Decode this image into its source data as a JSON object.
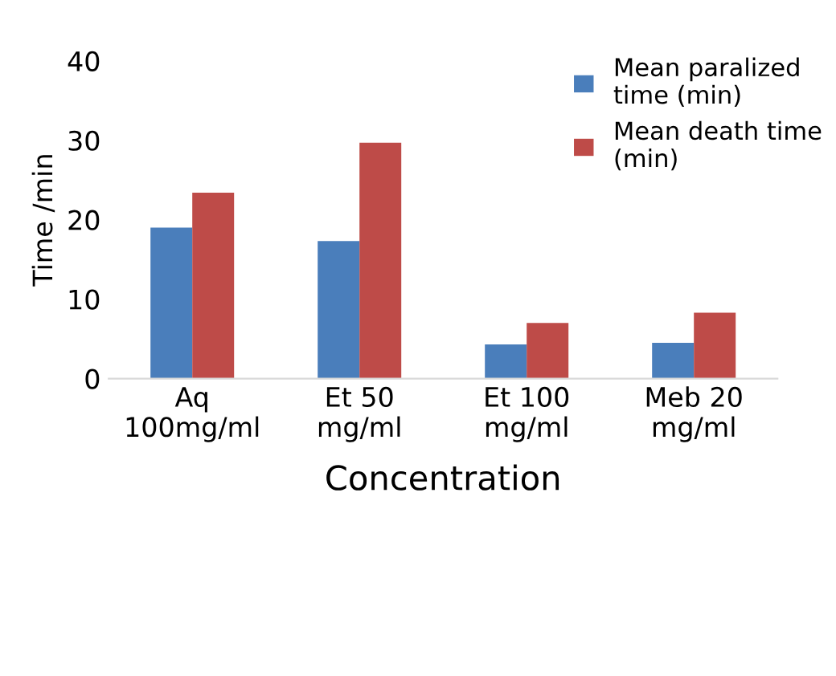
{
  "chart_data": {
    "type": "bar",
    "xlabel": "Concentration",
    "ylabel": "Time /min",
    "categories": [
      "Aq\n100mg/ml",
      "Et 50\nmg/ml",
      "Et 100\nmg/ml",
      "Meb 20\nmg/ml"
    ],
    "series": [
      {
        "name": "Mean paralized\ntime (min)",
        "color": "#4a7ebb",
        "values": [
          19,
          17.3,
          4.3,
          4.5
        ]
      },
      {
        "name": "Mean death time\n(min)",
        "color": "#be4b48",
        "values": [
          23.4,
          29.7,
          7,
          8.3
        ]
      }
    ],
    "ylim": [
      0,
      40
    ],
    "yticks": [
      0,
      10,
      20,
      30,
      40
    ],
    "grid": false,
    "legend": "top right"
  }
}
